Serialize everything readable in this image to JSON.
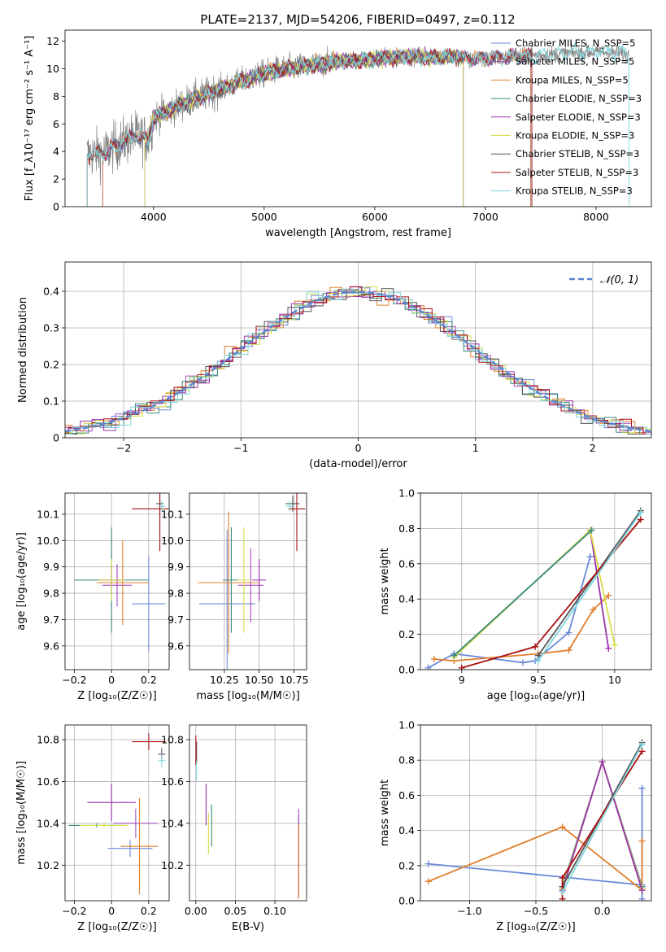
{
  "figure_title": "PLATE=2137, MJD=54206, FIBERID=0497, z=0.112",
  "colors": {
    "chabrier_miles": "#6a8ad8",
    "salpeter_miles": "#a64dbf",
    "kroupa_miles": "#e07f2c",
    "chabrier_elodie": "#3a8a7a",
    "salpeter_elodie": "#9933aa",
    "kroupa_elodie": "#d8dc4a",
    "chabrier_stelib": "#555555",
    "salpeter_stelib": "#aa1111",
    "kroupa_stelib": "#7fd6dc",
    "data_gray": "#808080",
    "normal": "#5b86d4"
  },
  "chart_data": [
    {
      "id": "spectrum",
      "type": "line",
      "title": "",
      "xlabel": "wavelength [Angstrom, rest frame]",
      "ylabel": "Flux [f_λ10⁻¹⁷ erg cm⁻² s⁻¹ A⁻¹]",
      "xlim": [
        3200,
        8500
      ],
      "ylim": [
        0,
        12.8
      ],
      "xticks": [
        4000,
        5000,
        6000,
        7000,
        8000
      ],
      "yticks": [
        0,
        2,
        4,
        6,
        8,
        10,
        12
      ],
      "grid": false,
      "legend_position": "right",
      "legend": [
        "Chabrier MILES, N_SSP=5",
        "Salpeter MILES, N_SSP=5",
        "Kroupa MILES, N_SSP=5",
        "Chabrier ELODIE, N_SSP=3",
        "Salpeter ELODIE, N_SSP=3",
        "Kroupa ELODIE, N_SSP=3",
        "Chabrier STELIB, N_SSP=3",
        "Salpeter STELIB, N_SSP=3",
        "Kroupa STELIB, N_SSP=3"
      ],
      "continuum": {
        "x": [
          3400,
          3550,
          3700,
          3850,
          3950,
          4000,
          4150,
          4300,
          4500,
          4700,
          4900,
          5100,
          5300,
          5500,
          5700,
          5900,
          6100,
          6300,
          6500,
          6700,
          6900,
          7100,
          7300,
          7500,
          7700,
          7900,
          8000,
          8100,
          8300
        ],
        "y": [
          3.8,
          3.9,
          4.6,
          5.2,
          4.8,
          6.5,
          7.0,
          7.6,
          8.2,
          8.8,
          9.4,
          9.9,
          10.1,
          10.3,
          10.6,
          10.6,
          10.8,
          10.9,
          10.8,
          10.9,
          10.7,
          10.8,
          10.9,
          11.0,
          11.1,
          11.2,
          11.2,
          11.2,
          11.0
        ]
      }
    },
    {
      "id": "residual_hist",
      "type": "bar",
      "title": "",
      "xlabel": "(data-model)/error",
      "ylabel": "Normed distribution",
      "xlim": [
        -2.5,
        2.5
      ],
      "ylim": [
        0,
        0.48
      ],
      "xticks": [
        -2,
        -1,
        0,
        1,
        2
      ],
      "yticks": [
        0.0,
        0.1,
        0.2,
        0.3,
        0.4
      ],
      "grid": true,
      "legend": [
        "𝒩(0, 1)"
      ],
      "legend_position": "top-right"
    },
    {
      "id": "age_vs_Z",
      "type": "scatter",
      "xlabel": "Z [log₁₀(Z/Z☉)]",
      "ylabel": "age  [log₁₀(age/yr)]",
      "xlim": [
        -0.25,
        0.31
      ],
      "ylim": [
        9.51,
        10.18
      ],
      "xticks": [
        -0.2,
        0.0,
        0.2
      ],
      "yticks": [
        9.6,
        9.7,
        9.8,
        9.9,
        10.0,
        10.1
      ],
      "grid": true,
      "points": [
        {
          "series": "chabrier_miles",
          "x": 0.2,
          "xerr": 0.09,
          "y": 9.76,
          "yerr": 0.18
        },
        {
          "series": "salpeter_miles",
          "x": 0.03,
          "xerr": 0.08,
          "y": 9.83,
          "yerr": 0.08
        },
        {
          "series": "kroupa_miles",
          "x": 0.06,
          "xerr": 0.14,
          "y": 9.84,
          "yerr": 0.16
        },
        {
          "series": "chabrier_elodie",
          "x": 0.0,
          "xerr": 0.2,
          "y": 9.85,
          "yerr": 0.2
        },
        {
          "series": "salpeter_elodie",
          "x": 0.0,
          "xerr": 0.05,
          "y": 9.85,
          "yerr": 0.06
        },
        {
          "series": "kroupa_elodie",
          "x": 0.0,
          "xerr": 0.07,
          "y": 9.85,
          "yerr": 0.08
        },
        {
          "series": "chabrier_stelib",
          "x": 0.26,
          "xerr": 0.02,
          "y": 10.14,
          "yerr": 0.03
        },
        {
          "series": "salpeter_stelib",
          "x": 0.26,
          "xerr": 0.15,
          "y": 10.12,
          "yerr": 0.16
        },
        {
          "series": "kroupa_stelib",
          "x": 0.27,
          "xerr": 0.02,
          "y": 10.13,
          "yerr": 0.02
        }
      ]
    },
    {
      "id": "age_vs_mass",
      "type": "scatter",
      "xlabel": "mass [log₁₀(M/M☉)]",
      "ylabel": "",
      "xlim": [
        10.0,
        10.84
      ],
      "ylim": [
        9.51,
        10.18
      ],
      "xticks": [
        10.25,
        10.5,
        10.75
      ],
      "xtick_labels": [
        "10.25",
        "10.50",
        "10.75"
      ],
      "yticks": [
        9.6,
        9.7,
        9.8,
        9.9,
        10.0,
        10.1
      ],
      "grid": true,
      "points": [
        {
          "series": "chabrier_miles",
          "x": 10.27,
          "xerr": 0.2,
          "y": 9.76,
          "yerr": 0.28
        },
        {
          "series": "salpeter_miles",
          "x": 10.44,
          "xerr": 0.09,
          "y": 9.83,
          "yerr": 0.14
        },
        {
          "series": "kroupa_miles",
          "x": 10.28,
          "xerr": 0.22,
          "y": 9.84,
          "yerr": 0.27
        },
        {
          "series": "chabrier_elodie",
          "x": 10.3,
          "xerr": 0.06,
          "y": 9.85,
          "yerr": 0.2
        },
        {
          "series": "salpeter_elodie",
          "x": 10.5,
          "xerr": 0.05,
          "y": 9.85,
          "yerr": 0.08
        },
        {
          "series": "kroupa_elodie",
          "x": 10.39,
          "xerr": 0.05,
          "y": 9.85,
          "yerr": 0.2
        },
        {
          "series": "chabrier_stelib",
          "x": 10.74,
          "xerr": 0.05,
          "y": 10.14,
          "yerr": 0.03
        },
        {
          "series": "salpeter_stelib",
          "x": 10.77,
          "xerr": 0.06,
          "y": 10.12,
          "yerr": 0.16
        },
        {
          "series": "kroupa_stelib",
          "x": 10.72,
          "xerr": 0.03,
          "y": 10.13,
          "yerr": 0.02
        }
      ]
    },
    {
      "id": "weight_vs_age",
      "type": "line",
      "xlabel": "age  [log₁₀(age/yr)]",
      "ylabel": "mass weight",
      "xlim": [
        8.73,
        10.24
      ],
      "ylim": [
        0,
        1.0
      ],
      "xticks": [
        9.0,
        9.5,
        10.0
      ],
      "yticks": [
        0.0,
        0.2,
        0.4,
        0.6,
        0.8,
        1.0
      ],
      "grid": true,
      "series": [
        {
          "series": "chabrier_miles",
          "x": [
            8.78,
            8.95,
            9.4,
            9.48,
            9.7,
            9.84
          ],
          "y": [
            0.01,
            0.09,
            0.04,
            0.05,
            0.21,
            0.64
          ]
        },
        {
          "series": "kroupa_miles",
          "x": [
            8.82,
            8.95,
            9.5,
            9.7,
            9.86,
            9.96
          ],
          "y": [
            0.06,
            0.05,
            0.09,
            0.11,
            0.34,
            0.42
          ]
        },
        {
          "series": "salpeter_elodie",
          "x": [
            9.84,
            9.96
          ],
          "y": [
            0.79,
            0.12
          ]
        },
        {
          "series": "kroupa_elodie",
          "x": [
            8.95,
            9.84,
            10.0
          ],
          "y": [
            0.07,
            0.79,
            0.14
          ]
        },
        {
          "series": "chabrier_elodie",
          "x": [
            8.95,
            9.85
          ],
          "y": [
            0.08,
            0.79
          ]
        },
        {
          "series": "chabrier_stelib",
          "x": [
            9.5,
            10.17
          ],
          "y": [
            0.08,
            0.9
          ]
        },
        {
          "series": "salpeter_stelib",
          "x": [
            9.0,
            9.48,
            10.17
          ],
          "y": [
            0.01,
            0.13,
            0.85
          ]
        },
        {
          "series": "kroupa_stelib",
          "x": [
            9.5,
            10.17
          ],
          "y": [
            0.05,
            0.89
          ]
        }
      ]
    },
    {
      "id": "mass_vs_Z",
      "type": "scatter",
      "xlabel": "Z [log₁₀(Z/Z☉)]",
      "ylabel": "mass [log₁₀(M/M☉)]",
      "xlim": [
        -0.25,
        0.31
      ],
      "ylim": [
        10.03,
        10.87
      ],
      "xticks": [
        -0.2,
        0.0,
        0.2
      ],
      "yticks": [
        10.2,
        10.4,
        10.6,
        10.8
      ],
      "grid": true,
      "points": [
        {
          "series": "chabrier_miles",
          "x": 0.1,
          "xerr": 0.12,
          "y": 10.28,
          "yerr": 0.04
        },
        {
          "series": "salpeter_miles",
          "x": 0.13,
          "xerr": 0.12,
          "y": 10.4,
          "yerr": 0.07
        },
        {
          "series": "kroupa_miles",
          "x": 0.15,
          "xerr": 0.1,
          "y": 10.29,
          "yerr": 0.23
        },
        {
          "series": "chabrier_elodie",
          "x": -0.08,
          "xerr": 0.15,
          "y": 10.39,
          "yerr": 0.01
        },
        {
          "series": "salpeter_elodie",
          "x": 0.0,
          "xerr": 0.13,
          "y": 10.5,
          "yerr": 0.09
        },
        {
          "series": "kroupa_elodie",
          "x": -0.04,
          "xerr": 0.13,
          "y": 10.39,
          "yerr": 0.01
        },
        {
          "series": "chabrier_stelib",
          "x": 0.27,
          "xerr": 0.02,
          "y": 10.73,
          "yerr": 0.03
        },
        {
          "series": "salpeter_stelib",
          "x": 0.2,
          "xerr": 0.09,
          "y": 10.79,
          "yerr": 0.04
        },
        {
          "series": "kroupa_stelib",
          "x": 0.27,
          "xerr": 0.02,
          "y": 10.7,
          "yerr": 0.03
        }
      ]
    },
    {
      "id": "mass_vs_ebv",
      "type": "scatter",
      "xlabel": "E(B-V)",
      "ylabel": "",
      "xlim": [
        -0.008,
        0.14
      ],
      "ylim": [
        10.03,
        10.87
      ],
      "xticks": [
        0.0,
        0.05,
        0.1
      ],
      "xtick_labels": [
        "0.00",
        "0.05",
        "0.10"
      ],
      "yticks": [
        10.2,
        10.4,
        10.6,
        10.8
      ],
      "grid": true,
      "points": [
        {
          "series": "chabrier_miles",
          "x": 0.13,
          "y": 10.24,
          "yerr": 0.2
        },
        {
          "series": "salpeter_miles",
          "x": 0.13,
          "y": 10.26,
          "yerr": 0.21
        },
        {
          "series": "kroupa_miles",
          "x": 0.13,
          "y": 10.22,
          "yerr": 0.18
        },
        {
          "series": "chabrier_elodie",
          "x": 0.02,
          "y": 10.39,
          "yerr": 0.1
        },
        {
          "series": "salpeter_elodie",
          "x": 0.013,
          "y": 10.49,
          "yerr": 0.1
        },
        {
          "series": "kroupa_elodie",
          "x": 0.016,
          "y": 10.35,
          "yerr": 0.1
        },
        {
          "series": "chabrier_stelib",
          "x": 0.001,
          "y": 10.74,
          "yerr": 0.05
        },
        {
          "series": "salpeter_stelib",
          "x": 0.0,
          "y": 10.75,
          "yerr": 0.07
        },
        {
          "series": "kroupa_stelib",
          "x": 0.001,
          "y": 10.65,
          "yerr": 0.05
        }
      ]
    },
    {
      "id": "weight_vs_Z",
      "type": "line",
      "xlabel": "Z [log₁₀(Z/Z☉)]",
      "ylabel": "mass weight",
      "xlim": [
        -1.37,
        0.37
      ],
      "ylim": [
        0,
        1.0
      ],
      "xticks": [
        -1.0,
        -0.5,
        0.0
      ],
      "xtick_labels": [
        "−1.0",
        "−0.5",
        "0.0"
      ],
      "yticks": [
        0.0,
        0.2,
        0.4,
        0.6,
        0.8,
        1.0
      ],
      "grid": true,
      "series": [
        {
          "series": "chabrier_miles",
          "x": [
            -1.31,
            0.3,
            0.3,
            0.3
          ],
          "y": [
            0.21,
            0.09,
            0.01,
            0.64
          ]
        },
        {
          "series": "kroupa_miles",
          "x": [
            -1.31,
            -0.3,
            0.3,
            0.3
          ],
          "y": [
            0.11,
            0.42,
            0.06,
            0.34
          ]
        },
        {
          "series": "chabrier_elodie",
          "x": [
            -0.3,
            0.0,
            0.3
          ],
          "y": [
            0.08,
            0.79,
            0.08
          ]
        },
        {
          "series": "kroupa_elodie",
          "x": [
            -0.3,
            0.0,
            0.3
          ],
          "y": [
            0.07,
            0.79,
            0.07
          ]
        },
        {
          "series": "salpeter_elodie",
          "x": [
            -0.3,
            0.0,
            0.3
          ],
          "y": [
            0.06,
            0.79,
            0.06
          ]
        },
        {
          "series": "chabrier_stelib",
          "x": [
            -0.3,
            0.3
          ],
          "y": [
            0.08,
            0.9
          ]
        },
        {
          "series": "salpeter_stelib",
          "x": [
            -0.3,
            -0.3,
            0.3
          ],
          "y": [
            0.01,
            0.13,
            0.85
          ]
        },
        {
          "series": "kroupa_stelib",
          "x": [
            -0.3,
            0.3
          ],
          "y": [
            0.05,
            0.89
          ]
        }
      ]
    }
  ]
}
